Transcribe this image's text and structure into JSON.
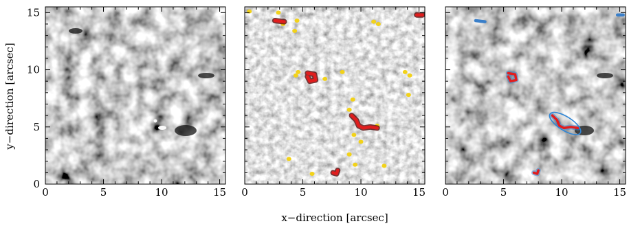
{
  "figure": {
    "ylabel": "y−direction [arcsec]",
    "xlabel": "x−direction [arcsec]"
  },
  "axis": {
    "x_ticks": [
      "0",
      "5",
      "10",
      "15"
    ],
    "y_ticks": [
      "0",
      "5",
      "10",
      "15"
    ]
  },
  "colors": {
    "red_contour": "#e11d1d",
    "yellow_blob": "#f2d21a",
    "blue_ellipse": "#2f86d6",
    "blue_patch": "#3a7fc9"
  },
  "panels": [
    {
      "name": "continuum-intensity-map"
    },
    {
      "name": "filtered-map-with-detections"
    },
    {
      "name": "intensity-map-with-features"
    }
  ],
  "chart_data": {
    "type": "heatmap",
    "xlabel": "x−direction [arcsec]",
    "ylabel": "y−direction [arcsec]",
    "xlim": [
      0,
      15.5
    ],
    "ylim": [
      0,
      15.5
    ],
    "panels": 3,
    "yellow_points_panel2": [
      [
        0.4,
        15.1
      ],
      [
        2.9,
        15.0
      ],
      [
        4.5,
        14.3
      ],
      [
        4.3,
        13.4
      ],
      [
        3.3,
        14.0
      ],
      [
        11.1,
        14.2
      ],
      [
        11.5,
        14.0
      ],
      [
        4.6,
        9.8
      ],
      [
        4.4,
        9.5
      ],
      [
        6.9,
        9.2
      ],
      [
        8.4,
        9.8
      ],
      [
        13.8,
        9.8
      ],
      [
        14.2,
        9.5
      ],
      [
        14.1,
        7.8
      ],
      [
        9.3,
        7.4
      ],
      [
        9.0,
        6.5
      ],
      [
        11.4,
        5.1
      ],
      [
        9.4,
        4.3
      ],
      [
        10.0,
        3.7
      ],
      [
        9.0,
        2.6
      ],
      [
        3.8,
        2.2
      ],
      [
        9.5,
        1.7
      ],
      [
        12.0,
        1.6
      ],
      [
        5.8,
        0.9
      ]
    ],
    "red_features_panel2": [
      [
        [
          2.6,
          14.3
        ],
        [
          3.4,
          14.2
        ]
      ],
      [
        [
          5.4,
          9.7
        ],
        [
          6.0,
          9.6
        ],
        [
          6.1,
          9.1
        ],
        [
          5.6,
          9.0
        ],
        [
          5.4,
          9.4
        ]
      ],
      [
        [
          9.2,
          6.0
        ],
        [
          9.6,
          5.6
        ],
        [
          9.8,
          5.1
        ],
        [
          10.2,
          4.9
        ],
        [
          10.8,
          5.0
        ],
        [
          11.4,
          4.9
        ]
      ],
      [
        [
          7.6,
          1.0
        ],
        [
          7.9,
          0.9
        ],
        [
          8.0,
          1.2
        ]
      ],
      [
        [
          14.8,
          14.8
        ],
        [
          15.3,
          14.8
        ]
      ]
    ]
  }
}
